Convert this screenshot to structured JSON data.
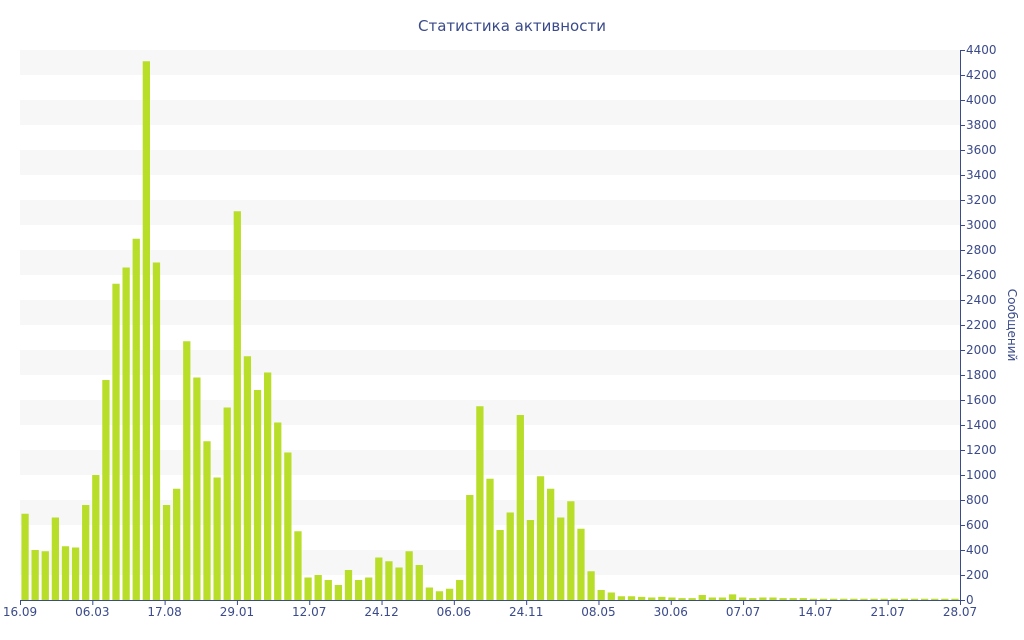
{
  "chart_data": {
    "type": "bar",
    "title": "Статистика активности",
    "ylabel": "Сообщений",
    "xlabel": "",
    "ylim": [
      0,
      4400
    ],
    "ytick_step": 200,
    "grid": "alternating horizontal bands",
    "y_axis_position": "right",
    "bar_color": "#b8de2a",
    "axis_color": "#3a4a8a",
    "x_tick_labels": [
      "16.09",
      "06.03",
      "17.08",
      "29.01",
      "12.07",
      "24.12",
      "06.06",
      "24.11",
      "08.05",
      "30.06",
      "07.07",
      "14.07",
      "21.07",
      "28.07"
    ],
    "values": [
      690,
      400,
      390,
      660,
      430,
      420,
      760,
      1000,
      1760,
      2530,
      2660,
      2890,
      4310,
      2700,
      760,
      890,
      2070,
      1780,
      1270,
      980,
      1540,
      3110,
      1950,
      1680,
      1820,
      1420,
      1180,
      550,
      180,
      200,
      160,
      120,
      240,
      160,
      180,
      340,
      310,
      260,
      390,
      280,
      100,
      70,
      90,
      160,
      840,
      1550,
      970,
      560,
      700,
      1480,
      640,
      990,
      890,
      660,
      790,
      570,
      230,
      80,
      60,
      30,
      30,
      25,
      20,
      25,
      20,
      15,
      15,
      40,
      20,
      20,
      45,
      20,
      15,
      20,
      20,
      15,
      15,
      15,
      10,
      10,
      10,
      10,
      10,
      10,
      10,
      10,
      10,
      10,
      10,
      10,
      10,
      10,
      10
    ]
  }
}
